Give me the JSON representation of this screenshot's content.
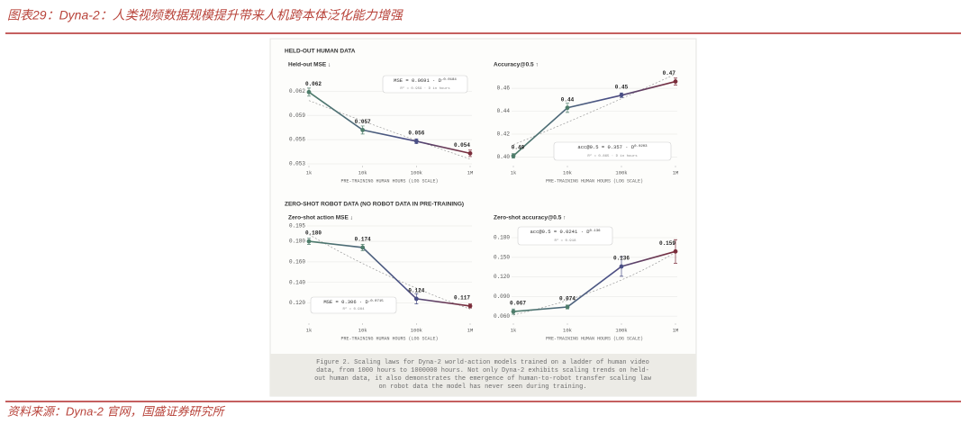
{
  "header": {
    "title": "图表29：Dyna-2：人类视频数据规模提升带来人机跨本体泛化能力增强"
  },
  "figure": {
    "sections": [
      "HELD-OUT HUMAN DATA",
      "ZERO-SHOT ROBOT DATA (NO ROBOT DATA IN PRE-TRAINING)"
    ],
    "caption": [
      "Figure 2. Scaling laws for Dyna-2 world-action models trained on a ladder of human video",
      "data, from 1000 hours to 1000000 hours. Not only Dyna-2 exhibits scaling trends on held-",
      "out human data, it also demonstrates the emergence of human-to-robot transfer scaling law",
      "on robot data the model has never seen during training."
    ]
  },
  "chart_data": [
    {
      "type": "line",
      "title": "Held-out MSE ↓",
      "xlabel": "PRE-TRAINING HUMAN HOURS (LOG SCALE)",
      "xscale": "log",
      "x": [
        1000,
        10000,
        100000,
        1000000
      ],
      "xlim": [
        1000,
        1000000
      ],
      "xticks": [
        {
          "value": 1000,
          "label": "1k"
        },
        {
          "value": 10000,
          "label": "10k"
        },
        {
          "value": 100000,
          "label": "100k"
        },
        {
          "value": 1000000,
          "label": "1M"
        }
      ],
      "ylim": [
        0.053,
        0.0635
      ],
      "yticks": [
        0.053,
        0.056,
        0.059,
        0.062
      ],
      "grid": true,
      "series": [
        {
          "color": "#4e7d6b",
          "end_color": "#7b2d3b",
          "values": [
            0.0619,
            0.0572,
            0.0558,
            0.0543
          ],
          "value_labels": [
            "0.062",
            "0.057",
            "0.056",
            "0.054"
          ],
          "errors": [
            0.0005,
            0.0005,
            0.0003,
            0.0004
          ]
        }
      ],
      "fit": {
        "prefix": "MSE = ",
        "a": 0.0691,
        "middle": " · D",
        "b": -0.0184,
        "note": "R² = 0.959 · D in hours"
      }
    },
    {
      "type": "line",
      "title": "Accuracy@0.5 ↑",
      "xlabel": "PRE-TRAINING HUMAN HOURS (LOG SCALE)",
      "xscale": "log",
      "x": [
        1000,
        10000,
        100000,
        1000000
      ],
      "xlim": [
        1000,
        1000000
      ],
      "xticks": [
        {
          "value": 1000,
          "label": "1k"
        },
        {
          "value": 10000,
          "label": "10k"
        },
        {
          "value": 100000,
          "label": "100k"
        },
        {
          "value": 1000000,
          "label": "1M"
        }
      ],
      "ylim": [
        0.394,
        0.468
      ],
      "yticks": [
        {
          "value": 0.4,
          "label": "0.40"
        },
        {
          "value": 0.42,
          "label": "0.42"
        },
        {
          "value": 0.44,
          "label": "0.44"
        },
        {
          "value": 0.46,
          "label": "0.46"
        }
      ],
      "grid": true,
      "series": [
        {
          "color": "#4e7d6b",
          "end_color": "#7b2d3b",
          "values": [
            0.401,
            0.443,
            0.454,
            0.466
          ],
          "value_labels": [
            "0.40",
            "0.44",
            "0.45",
            "0.47"
          ],
          "errors": [
            0.002,
            0.004,
            0.002,
            0.003
          ]
        }
      ],
      "fit": {
        "prefix": "acc@0.5 = ",
        "a": 0.357,
        "middle": " · D",
        "b": 0.0203,
        "note": "R² = 0.865 · D in hours"
      }
    },
    {
      "type": "line",
      "title": "Zero-shot action MSE ↓",
      "xlabel": "PRE-TRAINING HUMAN HOURS (LOG SCALE)",
      "xscale": "log",
      "x": [
        1000,
        10000,
        100000,
        1000000
      ],
      "xlim": [
        1000,
        1000000
      ],
      "xticks": [
        {
          "value": 1000,
          "label": "1k"
        },
        {
          "value": 10000,
          "label": "10k"
        },
        {
          "value": 100000,
          "label": "100k"
        },
        {
          "value": 1000000,
          "label": "1M"
        }
      ],
      "ylim": [
        0.102,
        0.195
      ],
      "yticks": [
        {
          "value": 0.12,
          "label": "0.120"
        },
        {
          "value": 0.14,
          "label": "0.140"
        },
        {
          "value": 0.16,
          "label": "0.160"
        },
        {
          "value": 0.18,
          "label": "0.180"
        },
        0.195
      ],
      "grid": true,
      "series": [
        {
          "color": "#4e7d6b",
          "end_color": "#7b2d3b",
          "values": [
            0.18,
            0.174,
            0.124,
            0.117
          ],
          "value_labels": [
            "0.180",
            "0.174",
            "0.124",
            "0.117"
          ],
          "errors": [
            0.003,
            0.003,
            0.005,
            0.002
          ]
        }
      ],
      "fit": {
        "prefix": "MSE = ",
        "a": 0.306,
        "middle": " · D",
        "b": -0.0715,
        "note": "R² = 0.984"
      }
    },
    {
      "type": "line",
      "title": "Zero-shot accuracy@0.5 ↑",
      "xlabel": "PRE-TRAINING HUMAN HOURS (LOG SCALE)",
      "xscale": "log",
      "x": [
        1000,
        10000,
        100000,
        1000000
      ],
      "xlim": [
        1000,
        1000000
      ],
      "xticks": [
        {
          "value": 1000,
          "label": "1k"
        },
        {
          "value": 10000,
          "label": "10k"
        },
        {
          "value": 100000,
          "label": "100k"
        },
        {
          "value": 1000000,
          "label": "1M"
        }
      ],
      "ylim": [
        0.052,
        0.198
      ],
      "yticks": [
        {
          "value": 0.06,
          "label": "0.060"
        },
        {
          "value": 0.09,
          "label": "0.090"
        },
        {
          "value": 0.12,
          "label": "0.120"
        },
        {
          "value": 0.15,
          "label": "0.150"
        },
        {
          "value": 0.18,
          "label": "0.180"
        }
      ],
      "grid": true,
      "series": [
        {
          "color": "#4e7d6b",
          "end_color": "#7b2d3b",
          "values": [
            0.067,
            0.074,
            0.136,
            0.159
          ],
          "value_labels": [
            "0.067",
            "0.074",
            "0.136",
            "0.159"
          ],
          "errors": [
            0.004,
            0.003,
            0.015,
            0.018
          ]
        }
      ],
      "fit": {
        "prefix": "acc@0.5 = ",
        "a": 0.0241,
        "middle": " · D",
        "b": 0.136,
        "note": "R² = 0.918"
      }
    }
  ],
  "footer": {
    "source": "资料来源：Dyna-2 官网，国盛证券研究所"
  }
}
